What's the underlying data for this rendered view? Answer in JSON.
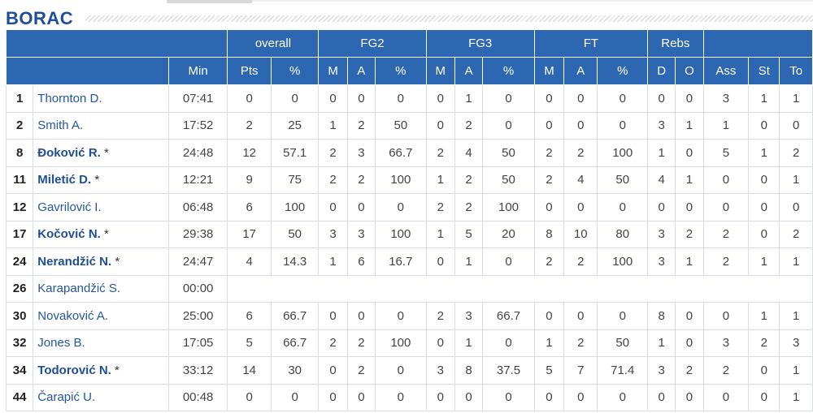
{
  "team": "BORAC",
  "colors": {
    "header_bg": "#2d67b2",
    "title": "#1f4e99",
    "player_link": "#2457a3"
  },
  "groups": [
    "overall",
    "FG2",
    "FG3",
    "FT",
    "Rebs"
  ],
  "columns": [
    "Min",
    "Pts",
    "%",
    "M",
    "A",
    "%",
    "M",
    "A",
    "%",
    "M",
    "A",
    "%",
    "D",
    "O",
    "Ass",
    "St",
    "To"
  ],
  "players": [
    {
      "no": "1",
      "name": "Thornton D.",
      "starter": false,
      "stats": [
        "07:41",
        "0",
        "0",
        "0",
        "0",
        "0",
        "0",
        "1",
        "0",
        "0",
        "0",
        "0",
        "0",
        "0",
        "3",
        "1",
        "1"
      ]
    },
    {
      "no": "2",
      "name": "Smith A.",
      "starter": false,
      "stats": [
        "17:52",
        "2",
        "25",
        "1",
        "2",
        "50",
        "0",
        "2",
        "0",
        "0",
        "0",
        "0",
        "3",
        "1",
        "1",
        "0",
        "0"
      ]
    },
    {
      "no": "8",
      "name": "Đoković R.",
      "starter": true,
      "stats": [
        "24:48",
        "12",
        "57.1",
        "2",
        "3",
        "66.7",
        "2",
        "4",
        "50",
        "2",
        "2",
        "100",
        "1",
        "0",
        "5",
        "1",
        "2"
      ]
    },
    {
      "no": "11",
      "name": "Miletić D.",
      "starter": true,
      "stats": [
        "12:21",
        "9",
        "75",
        "2",
        "2",
        "100",
        "1",
        "2",
        "50",
        "2",
        "4",
        "50",
        "4",
        "1",
        "0",
        "0",
        "1"
      ]
    },
    {
      "no": "12",
      "name": "Gavrilović I.",
      "starter": false,
      "stats": [
        "06:48",
        "6",
        "100",
        "0",
        "0",
        "0",
        "2",
        "2",
        "100",
        "0",
        "0",
        "0",
        "0",
        "0",
        "0",
        "0",
        "0"
      ]
    },
    {
      "no": "17",
      "name": "Kočović N.",
      "starter": true,
      "stats": [
        "29:38",
        "17",
        "50",
        "3",
        "3",
        "100",
        "1",
        "5",
        "20",
        "8",
        "10",
        "80",
        "3",
        "2",
        "2",
        "0",
        "2"
      ]
    },
    {
      "no": "24",
      "name": "Nerandžić N.",
      "starter": true,
      "stats": [
        "24:47",
        "4",
        "14.3",
        "1",
        "6",
        "16.7",
        "0",
        "1",
        "0",
        "2",
        "2",
        "100",
        "3",
        "1",
        "2",
        "1",
        "1"
      ]
    },
    {
      "no": "26",
      "name": "Karapandžić S.",
      "starter": false,
      "stats": [
        "00:00"
      ]
    },
    {
      "no": "30",
      "name": "Novaković A.",
      "starter": false,
      "stats": [
        "25:00",
        "6",
        "66.7",
        "0",
        "0",
        "0",
        "2",
        "3",
        "66.7",
        "0",
        "0",
        "0",
        "8",
        "0",
        "0",
        "1",
        "1"
      ]
    },
    {
      "no": "32",
      "name": "Jones B.",
      "starter": false,
      "stats": [
        "17:05",
        "5",
        "66.7",
        "2",
        "2",
        "100",
        "0",
        "1",
        "0",
        "1",
        "2",
        "50",
        "1",
        "0",
        "3",
        "2",
        "3"
      ]
    },
    {
      "no": "34",
      "name": "Todorović N.",
      "starter": true,
      "stats": [
        "33:12",
        "14",
        "30",
        "0",
        "2",
        "0",
        "3",
        "8",
        "37.5",
        "5",
        "7",
        "71.4",
        "3",
        "2",
        "2",
        "0",
        "1"
      ]
    },
    {
      "no": "44",
      "name": "Čarapić U.",
      "starter": false,
      "stats": [
        "00:48",
        "0",
        "0",
        "0",
        "0",
        "0",
        "0",
        "0",
        "0",
        "0",
        "0",
        "0",
        "0",
        "0",
        "0",
        "0",
        "1"
      ]
    }
  ]
}
